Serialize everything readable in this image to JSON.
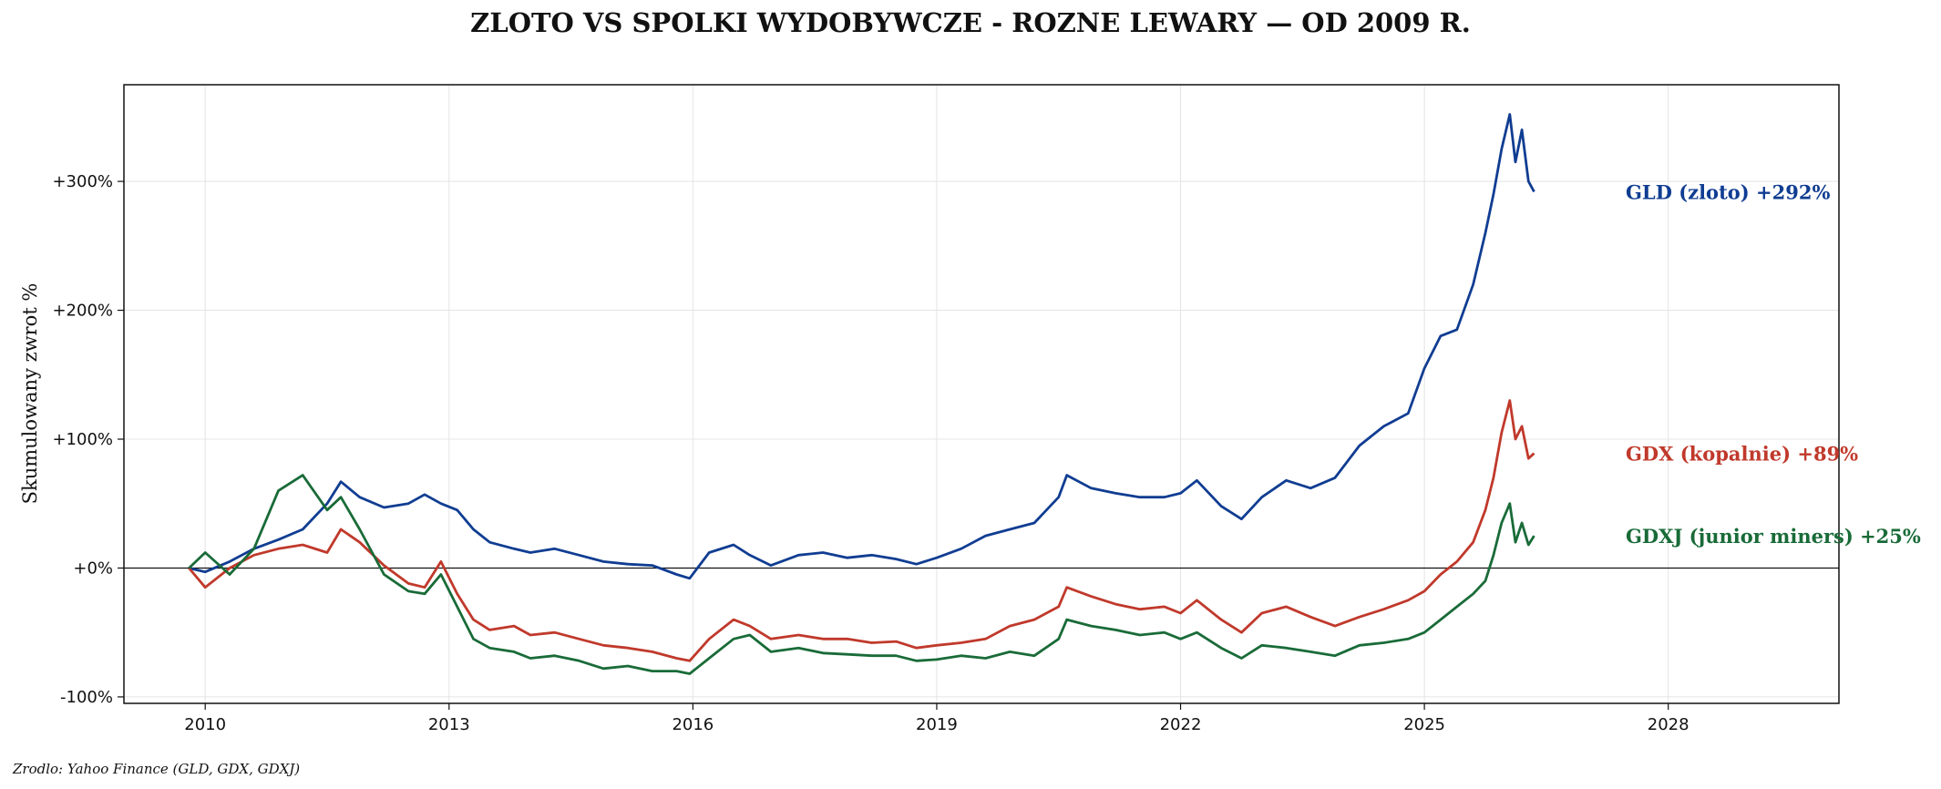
{
  "chart_data": {
    "type": "line",
    "title": "ZLOTO VS SPOLKI WYDOBYWCZE - ROZNE LEWARY — OD 2009 R.",
    "ylabel": "Skumulowany zwrot %",
    "xlabel": "",
    "source": "Zrodlo: Yahoo Finance (GLD, GDX, GDXJ)",
    "xlim": [
      2009.0,
      2030.1
    ],
    "ylim": [
      -105,
      375
    ],
    "x_ticks": [
      {
        "value": 2010,
        "label": "2010"
      },
      {
        "value": 2013,
        "label": "2013"
      },
      {
        "value": 2016,
        "label": "2016"
      },
      {
        "value": 2019,
        "label": "2019"
      },
      {
        "value": 2022,
        "label": "2022"
      },
      {
        "value": 2025,
        "label": "2025"
      },
      {
        "value": 2028,
        "label": "2028"
      }
    ],
    "y_ticks": [
      {
        "value": -100,
        "label": "-100%"
      },
      {
        "value": 0,
        "label": "+0%"
      },
      {
        "value": 100,
        "label": "+100%"
      },
      {
        "value": 200,
        "label": "+200%"
      },
      {
        "value": 300,
        "label": "+300%"
      }
    ],
    "grid": true,
    "zero_line": true,
    "series": [
      {
        "name": "GLD (zloto)",
        "end_label": "GLD (zloto)  +292%",
        "color": "#103d92",
        "x": [
          2009.8,
          2010.0,
          2010.3,
          2010.6,
          2010.9,
          2011.2,
          2011.5,
          2011.67,
          2011.9,
          2012.2,
          2012.5,
          2012.7,
          2012.9,
          2013.1,
          2013.3,
          2013.5,
          2013.8,
          2014.0,
          2014.3,
          2014.6,
          2014.9,
          2015.2,
          2015.5,
          2015.8,
          2015.96,
          2016.2,
          2016.5,
          2016.7,
          2016.96,
          2017.3,
          2017.6,
          2017.9,
          2018.2,
          2018.5,
          2018.75,
          2019.0,
          2019.3,
          2019.6,
          2019.9,
          2020.2,
          2020.5,
          2020.6,
          2020.9,
          2021.2,
          2021.5,
          2021.8,
          2022.0,
          2022.2,
          2022.5,
          2022.75,
          2023.0,
          2023.3,
          2023.6,
          2023.9,
          2024.2,
          2024.5,
          2024.8,
          2025.0,
          2025.2,
          2025.4,
          2025.6,
          2025.75,
          2025.85,
          2025.95,
          2026.05,
          2026.12,
          2026.2,
          2026.28,
          2026.35
        ],
        "y": [
          0,
          -3,
          5,
          15,
          22,
          30,
          50,
          67,
          55,
          47,
          50,
          57,
          50,
          45,
          30,
          20,
          15,
          12,
          15,
          10,
          5,
          3,
          2,
          -5,
          -8,
          12,
          18,
          10,
          2,
          10,
          12,
          8,
          10,
          7,
          3,
          8,
          15,
          25,
          30,
          35,
          55,
          72,
          62,
          58,
          55,
          55,
          58,
          68,
          48,
          38,
          55,
          68,
          62,
          70,
          95,
          110,
          120,
          155,
          180,
          185,
          220,
          260,
          290,
          325,
          352,
          315,
          340,
          300,
          292
        ]
      },
      {
        "name": "GDX (kopalnie)",
        "end_label": "GDX (kopalnie)  +89%",
        "color": "#c0392b",
        "x": [
          2009.8,
          2010.0,
          2010.3,
          2010.6,
          2010.9,
          2011.2,
          2011.5,
          2011.67,
          2011.9,
          2012.2,
          2012.5,
          2012.7,
          2012.9,
          2013.1,
          2013.3,
          2013.5,
          2013.8,
          2014.0,
          2014.3,
          2014.6,
          2014.9,
          2015.2,
          2015.5,
          2015.8,
          2015.96,
          2016.2,
          2016.5,
          2016.7,
          2016.96,
          2017.3,
          2017.6,
          2017.9,
          2018.2,
          2018.5,
          2018.75,
          2019.0,
          2019.3,
          2019.6,
          2019.9,
          2020.2,
          2020.5,
          2020.6,
          2020.9,
          2021.2,
          2021.5,
          2021.8,
          2022.0,
          2022.2,
          2022.5,
          2022.75,
          2023.0,
          2023.3,
          2023.6,
          2023.9,
          2024.2,
          2024.5,
          2024.8,
          2025.0,
          2025.2,
          2025.4,
          2025.6,
          2025.75,
          2025.85,
          2025.95,
          2026.05,
          2026.12,
          2026.2,
          2026.28,
          2026.35
        ],
        "y": [
          0,
          -15,
          0,
          10,
          15,
          18,
          12,
          30,
          20,
          2,
          -12,
          -15,
          5,
          -20,
          -40,
          -48,
          -45,
          -52,
          -50,
          -55,
          -60,
          -62,
          -65,
          -70,
          -72,
          -55,
          -40,
          -45,
          -55,
          -52,
          -55,
          -55,
          -58,
          -57,
          -62,
          -60,
          -58,
          -55,
          -45,
          -40,
          -30,
          -15,
          -22,
          -28,
          -32,
          -30,
          -35,
          -25,
          -40,
          -50,
          -35,
          -30,
          -38,
          -45,
          -38,
          -32,
          -25,
          -18,
          -5,
          5,
          20,
          45,
          70,
          105,
          130,
          100,
          110,
          85,
          89
        ]
      },
      {
        "name": "GDXJ (junior miners)",
        "end_label": "GDXJ (junior miners)  +25%",
        "color": "#196b38",
        "x": [
          2009.8,
          2010.0,
          2010.3,
          2010.6,
          2010.9,
          2011.2,
          2011.5,
          2011.67,
          2011.9,
          2012.2,
          2012.5,
          2012.7,
          2012.9,
          2013.1,
          2013.3,
          2013.5,
          2013.8,
          2014.0,
          2014.3,
          2014.6,
          2014.9,
          2015.2,
          2015.5,
          2015.8,
          2015.96,
          2016.2,
          2016.5,
          2016.7,
          2016.96,
          2017.3,
          2017.6,
          2017.9,
          2018.2,
          2018.5,
          2018.75,
          2019.0,
          2019.3,
          2019.6,
          2019.9,
          2020.2,
          2020.5,
          2020.6,
          2020.9,
          2021.2,
          2021.5,
          2021.8,
          2022.0,
          2022.2,
          2022.5,
          2022.75,
          2023.0,
          2023.3,
          2023.6,
          2023.9,
          2024.2,
          2024.5,
          2024.8,
          2025.0,
          2025.2,
          2025.4,
          2025.6,
          2025.75,
          2025.85,
          2025.95,
          2026.05,
          2026.12,
          2026.2,
          2026.28,
          2026.35
        ],
        "y": [
          0,
          12,
          -5,
          15,
          60,
          72,
          45,
          55,
          30,
          -5,
          -18,
          -20,
          -5,
          -30,
          -55,
          -62,
          -65,
          -70,
          -68,
          -72,
          -78,
          -76,
          -80,
          -80,
          -82,
          -70,
          -55,
          -52,
          -65,
          -62,
          -66,
          -67,
          -68,
          -68,
          -72,
          -71,
          -68,
          -70,
          -65,
          -68,
          -55,
          -40,
          -45,
          -48,
          -52,
          -50,
          -55,
          -50,
          -62,
          -70,
          -60,
          -62,
          -65,
          -68,
          -60,
          -58,
          -55,
          -50,
          -40,
          -30,
          -20,
          -10,
          10,
          35,
          50,
          20,
          35,
          18,
          25
        ]
      }
    ]
  }
}
